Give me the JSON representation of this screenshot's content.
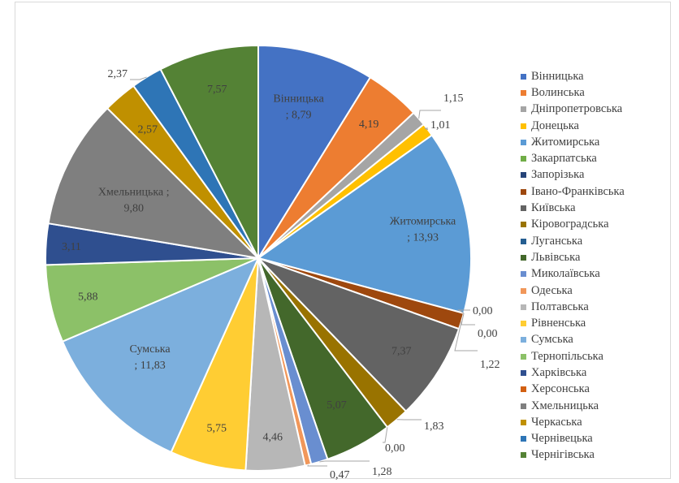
{
  "chart_data": {
    "type": "pie",
    "title": "",
    "legend_position": "right",
    "categories": [
      "Вінницька",
      "Волинська",
      "Дніпропетровська",
      "Донецька",
      "Житомирська",
      "Закарпатська",
      "Запорізька",
      "Івано-Франківська",
      "Київська",
      "Кіровоградська",
      "Луганська",
      "Львівська",
      "Миколаївська",
      "Одеська",
      "Полтавська",
      "Рівненська",
      "Сумська",
      "Тернопільська",
      "Харківська",
      "Херсонська",
      "Хмельницька",
      "Черкаська",
      "Черніве­цька",
      "Чернігівська"
    ],
    "values": [
      8.79,
      4.19,
      1.15,
      1.01,
      13.93,
      0.0,
      0.0,
      1.22,
      7.37,
      1.83,
      0.0,
      5.07,
      1.28,
      0.47,
      4.46,
      5.75,
      11.83,
      5.88,
      3.11,
      0.0,
      9.8,
      2.57,
      2.37,
      7.57
    ],
    "colors": [
      "#4472c4",
      "#ed7d31",
      "#a5a5a5",
      "#ffc000",
      "#5b9bd5",
      "#70ad47",
      "#264478",
      "#9e480e",
      "#636363",
      "#997300",
      "#255e91",
      "#43682b",
      "#698ed0",
      "#f1975a",
      "#b7b7b7",
      "#ffcd33",
      "#7cafdd",
      "#8cc168",
      "#2f4f8f",
      "#d26012",
      "#7f7f7f",
      "#c09000",
      "#2e75b6",
      "#548235"
    ],
    "labels": [
      "Вінницька\n; 8,79",
      "4,19",
      "1,15",
      "1,01",
      "Житомирська\n; 13,93",
      "0,00",
      "0,00",
      "1,22",
      "7,37",
      "1,83",
      "0,00",
      "5,07",
      "1,28",
      "0,47",
      "4,46",
      "5,75",
      "Сумська\n; 11,83",
      "5,88",
      "3,11",
      "",
      "Хмельницька ;\n9,80",
      "2,57",
      "2,37",
      "7,57"
    ]
  }
}
